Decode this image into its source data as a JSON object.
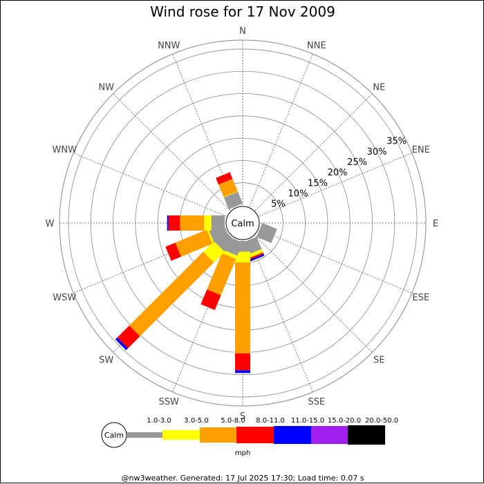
{
  "title": "Wind rose for 17 Nov 2009",
  "footer": "@nw3weather.  Generated: 17 Jul 2025 17:30; Load time: 0.07 s",
  "chart_data": {
    "type": "wind-rose",
    "directions": [
      "N",
      "NNE",
      "NE",
      "ENE",
      "E",
      "ESE",
      "SE",
      "SSE",
      "S",
      "SSW",
      "SW",
      "WSW",
      "W",
      "WNW",
      "NW",
      "NNW"
    ],
    "radial_ticks": [
      5,
      10,
      15,
      20,
      25,
      30,
      35
    ],
    "radial_tick_labels": [
      "5%",
      "10%",
      "15%",
      "20%",
      "25%",
      "30%",
      "35%"
    ],
    "radial_max_percent": 37,
    "calm_label": "Calm",
    "units": "mph",
    "speed_bins": [
      {
        "label": "1.0-3.0",
        "color": "#999999"
      },
      {
        "label": "3.0-5.0",
        "color": "#ffff00"
      },
      {
        "label": "5.0-8.0",
        "color": "#ffa000"
      },
      {
        "label": "8.0-11.0",
        "color": "#ff0000"
      },
      {
        "label": "11.0-15.0",
        "color": "#0000ff"
      },
      {
        "label": "15.0-20.0",
        "color": "#a020f0"
      },
      {
        "label": "20.0-50.0",
        "color": "#000000"
      }
    ],
    "cumulative_percent_by_direction": {
      "N": [
        0,
        0,
        0,
        0,
        0,
        0,
        0
      ],
      "NNE": [
        0,
        0,
        0,
        0,
        0,
        0,
        0
      ],
      "NE": [
        0,
        0,
        0,
        0,
        0,
        0,
        0
      ],
      "ENE": [
        0,
        0,
        0,
        0,
        0,
        0,
        0
      ],
      "E": [
        0,
        0,
        0,
        0,
        0,
        0,
        0
      ],
      "ESE": [
        3.6,
        3.6,
        3.6,
        3.6,
        3.6,
        3.6,
        3.6
      ],
      "SE": [
        0,
        0,
        0,
        0,
        0,
        0,
        0
      ],
      "SSE": [
        3.0,
        3.8,
        3.8,
        4.2,
        4.6,
        4.6,
        4.6
      ],
      "S": [
        2.4,
        4.8,
        25.2,
        29.0,
        29.6,
        29.6,
        29.6
      ],
      "SSW": [
        3.2,
        4.0,
        12.8,
        16.4,
        16.4,
        16.4,
        16.4
      ],
      "SW": [
        3.4,
        6.8,
        30.2,
        34.0,
        34.6,
        34.6,
        34.6
      ],
      "WSW": [
        3.6,
        4.0,
        11.6,
        14.0,
        14.0,
        14.0,
        14.0
      ],
      "W": [
        3.0,
        4.6,
        10.0,
        12.6,
        12.9,
        12.9,
        12.9
      ],
      "WNW": [
        0,
        0,
        0,
        0,
        0,
        0,
        0
      ],
      "NW": [
        0,
        0,
        0,
        0,
        0,
        0,
        0
      ],
      "NNW": [
        2.9,
        3.0,
        6.0,
        7.6,
        7.6,
        7.6,
        7.6
      ]
    }
  }
}
